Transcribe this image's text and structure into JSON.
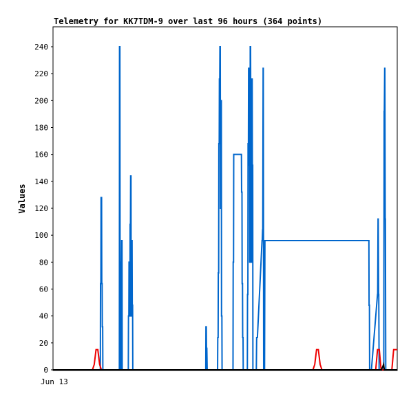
{
  "chart_data": {
    "type": "line",
    "title": "Telemetry for KK7TDM-9 over last 96 hours (364 points)",
    "xlabel": "",
    "ylabel": "Values",
    "x_tick_labels": [
      "Jun 13"
    ],
    "y_ticks": [
      0,
      20,
      40,
      60,
      80,
      100,
      120,
      140,
      160,
      180,
      200,
      220,
      240
    ],
    "x_range": [
      0,
      96
    ],
    "ylim": [
      0,
      255
    ],
    "grid": false,
    "legend": "none",
    "series": [
      {
        "color": "#0066cc",
        "x": [
          0,
          13.2,
          13.25,
          13.35,
          13.4,
          13.55,
          13.6,
          13.7,
          13.75,
          13.85,
          13.9,
          14.0,
          18.5,
          18.55,
          18.65,
          18.7,
          18.8,
          18.85,
          19.0,
          19.05,
          19.1,
          19.15,
          19.25,
          19.3,
          19.4,
          19.45,
          19.6,
          19.65,
          19.8,
          19.85,
          20.0,
          21.0,
          21.05,
          21.15,
          21.2,
          21.3,
          21.35,
          21.45,
          21.5,
          21.6,
          21.65,
          21.75,
          21.8,
          21.9,
          21.95,
          22.05,
          22.1,
          22.2,
          22.25,
          22.35,
          22.4,
          22.5,
          22.55,
          22.65,
          22.7,
          22.8,
          22.85,
          22.95,
          23.0,
          23.1,
          23.2,
          23.3,
          23.4,
          23.5,
          42.6,
          42.65,
          42.75,
          42.8,
          42.9,
          43.0,
          45.9,
          45.95,
          46.05,
          46.1,
          46.2,
          46.25,
          46.35,
          46.4,
          46.5,
          46.55,
          46.65,
          46.7,
          46.8,
          46.85,
          46.95,
          47.0,
          47.1,
          47.15,
          47.25,
          47.3,
          47.4,
          47.45,
          47.55,
          47.6,
          47.7,
          47.8,
          47.9,
          48.0,
          50.2,
          50.25,
          50.35,
          50.4,
          50.5,
          50.55,
          50.65,
          50.7,
          52.4,
          52.45,
          52.55,
          52.6,
          52.7,
          52.75,
          52.85,
          52.9,
          53.0,
          53.05,
          53.15,
          53.2,
          53.3,
          53.4,
          53.5,
          54.2,
          54.25,
          54.35,
          54.4,
          54.5,
          54.55,
          54.65,
          54.7,
          54.8,
          54.85,
          54.95,
          55.0,
          55.1,
          55.15,
          55.25,
          55.3,
          55.4,
          55.45,
          55.55,
          55.6,
          55.7,
          55.75,
          55.85,
          55.9,
          56.0,
          56.05,
          56.15,
          56.2,
          56.3,
          56.4,
          56.5,
          56.6,
          56.7,
          56.8,
          57.0,
          58.3,
          58.35,
          58.45,
          58.5,
          58.6,
          58.65,
          58.75,
          58.8,
          58.9,
          59.0,
          59.1,
          88.1,
          88.15,
          88.25,
          88.3,
          88.4,
          88.45,
          88.55,
          88.6,
          88.7,
          88.8,
          90.5,
          90.55,
          90.65,
          90.7,
          90.8,
          90.85,
          90.95,
          91.0,
          91.1,
          91.2,
          92.2,
          92.25,
          92.35,
          92.4,
          92.5,
          92.55,
          92.65,
          92.7,
          92.8,
          92.85,
          92.95,
          93.0,
          93.1,
          93.2,
          93.3,
          93.4,
          93.5,
          96
        ],
        "y": [
          0,
          0,
          64,
          64,
          128,
          128,
          64,
          64,
          32,
          32,
          0,
          0,
          0,
          240,
          240,
          80,
          80,
          0,
          0,
          80,
          80,
          96,
          96,
          0,
          0,
          0,
          0,
          0,
          0,
          0,
          0,
          0,
          40,
          40,
          80,
          80,
          40,
          40,
          108,
          108,
          144,
          144,
          40,
          40,
          96,
          96,
          48,
          48,
          0,
          0,
          0,
          0,
          0,
          0,
          0,
          0,
          0,
          0,
          0,
          0,
          0,
          0,
          0,
          0,
          0,
          32,
          32,
          16,
          16,
          0,
          0,
          24,
          24,
          72,
          72,
          168,
          168,
          216,
          216,
          240,
          240,
          120,
          120,
          200,
          200,
          40,
          40,
          0,
          0,
          0,
          0,
          0,
          0,
          0,
          0,
          0,
          0,
          0,
          0,
          80,
          80,
          160,
          160,
          160,
          160,
          160,
          160,
          160,
          160,
          132,
          132,
          64,
          64,
          24,
          24,
          0,
          0,
          0,
          0,
          0,
          0,
          0,
          56,
          56,
          168,
          168,
          224,
          224,
          152,
          152,
          80,
          80,
          240,
          240,
          192,
          192,
          80,
          80,
          216,
          216,
          152,
          152,
          0,
          0,
          0,
          0,
          0,
          0,
          0,
          0,
          0,
          0,
          0,
          0,
          24,
          24,
          96,
          96,
          104,
          104,
          224,
          224,
          0,
          0,
          0,
          0,
          96,
          96,
          48,
          48,
          0,
          0,
          0,
          0,
          0,
          0,
          0,
          56,
          56,
          112,
          112,
          56,
          56,
          0,
          0,
          0,
          0,
          0,
          0,
          192,
          192,
          224,
          224,
          112,
          112,
          0,
          0,
          0,
          0,
          0,
          0,
          0,
          0,
          0,
          0
        ]
      },
      {
        "color": "#ee0000",
        "x": [
          0,
          11.0,
          11.5,
          12.0,
          12.5,
          13.0,
          13.5,
          72.5,
          73.0,
          73.5,
          74.0,
          74.5,
          75.0,
          90.0,
          90.5,
          91.0,
          91.5,
          94.5,
          95.0,
          96
        ],
        "y": [
          0,
          0,
          4,
          15,
          15,
          4,
          0,
          0,
          4,
          15,
          15,
          4,
          0,
          0,
          15,
          15,
          0,
          0,
          15,
          15
        ]
      },
      {
        "color": "#000000",
        "x": [
          0,
          91.6,
          92.2,
          92.4,
          96
        ],
        "y": [
          0,
          0,
          4,
          0,
          0
        ]
      }
    ]
  }
}
